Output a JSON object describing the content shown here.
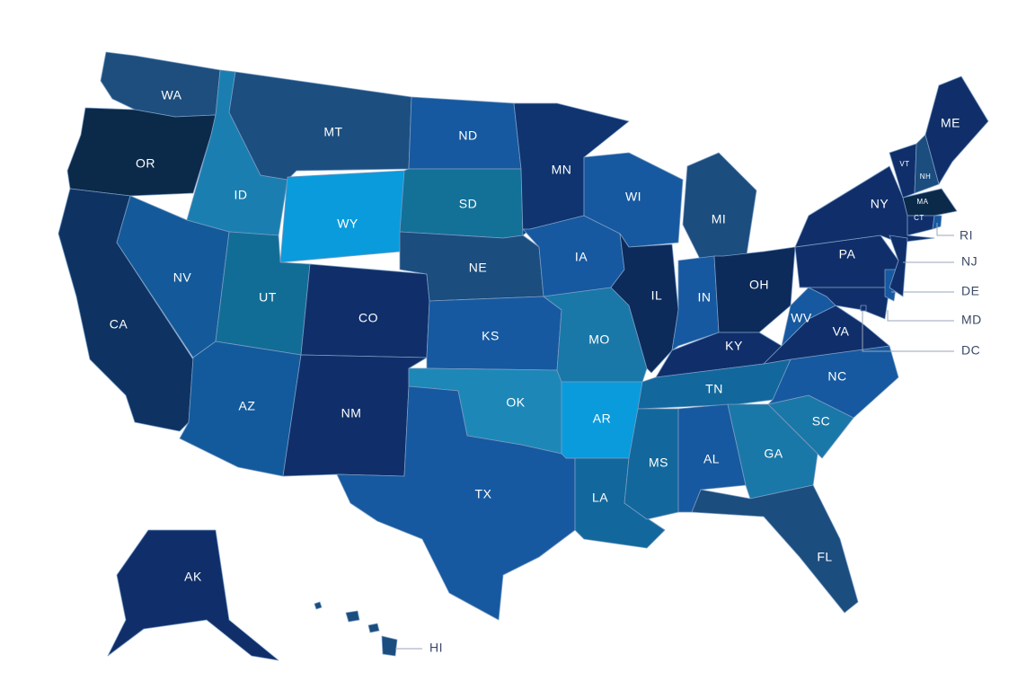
{
  "states": [
    {
      "label": "WA",
      "color": "#1d4e7e"
    },
    {
      "label": "OR",
      "color": "#0b2a4a"
    },
    {
      "label": "CA",
      "color": "#0e3362"
    },
    {
      "label": "ID",
      "color": "#1a7fb0"
    },
    {
      "label": "NV",
      "color": "#145a9a"
    },
    {
      "label": "MT",
      "color": "#1c4f80"
    },
    {
      "label": "WY",
      "color": "#0a9bdc"
    },
    {
      "label": "UT",
      "color": "#126d96"
    },
    {
      "label": "AZ",
      "color": "#135a9c"
    },
    {
      "label": "CO",
      "color": "#102f6a"
    },
    {
      "label": "NM",
      "color": "#102f6a"
    },
    {
      "label": "ND",
      "color": "#1659a0"
    },
    {
      "label": "SD",
      "color": "#137198"
    },
    {
      "label": "NE",
      "color": "#1b4d7e"
    },
    {
      "label": "KS",
      "color": "#1659a0"
    },
    {
      "label": "OK",
      "color": "#1d88b8"
    },
    {
      "label": "TX",
      "color": "#1659a0"
    },
    {
      "label": "MN",
      "color": "#0f3470"
    },
    {
      "label": "IA",
      "color": "#1659a0"
    },
    {
      "label": "MO",
      "color": "#1a78a8"
    },
    {
      "label": "AR",
      "color": "#0a9bdc"
    },
    {
      "label": "LA",
      "color": "#12689c"
    },
    {
      "label": "WI",
      "color": "#1659a0"
    },
    {
      "label": "IL",
      "color": "#0c2a5a"
    },
    {
      "label": "MI",
      "color": "#1b4d7e"
    },
    {
      "label": "IN",
      "color": "#1659a0"
    },
    {
      "label": "OH",
      "color": "#0c2a5a"
    },
    {
      "label": "KY",
      "color": "#102f6a"
    },
    {
      "label": "TN",
      "color": "#12689c"
    },
    {
      "label": "MS",
      "color": "#12689c"
    },
    {
      "label": "AL",
      "color": "#1659a0"
    },
    {
      "label": "GA",
      "color": "#1a78a8"
    },
    {
      "label": "FL",
      "color": "#1b4d7e"
    },
    {
      "label": "SC",
      "color": "#1a78a8"
    },
    {
      "label": "NC",
      "color": "#1659a0"
    },
    {
      "label": "VA",
      "color": "#102f6a"
    },
    {
      "label": "WV",
      "color": "#1659a0"
    },
    {
      "label": "PA",
      "color": "#102f6a"
    },
    {
      "label": "NY",
      "color": "#102f6a"
    },
    {
      "label": "MD",
      "color": "#102f6a"
    },
    {
      "label": "DE",
      "color": "#1659a0"
    },
    {
      "label": "NJ",
      "color": "#102f6a"
    },
    {
      "label": "VT",
      "color": "#102f6a"
    },
    {
      "label": "NH",
      "color": "#1b4d7e"
    },
    {
      "label": "ME",
      "color": "#102f6a"
    },
    {
      "label": "MA",
      "color": "#0b2a4a"
    },
    {
      "label": "CT",
      "color": "#102f6a"
    },
    {
      "label": "RI",
      "color": "#1659a0"
    },
    {
      "label": "DC",
      "color": "#102f6a"
    },
    {
      "label": "AK",
      "color": "#102f6a"
    },
    {
      "label": "HI",
      "color": "#1b4d7e"
    }
  ]
}
